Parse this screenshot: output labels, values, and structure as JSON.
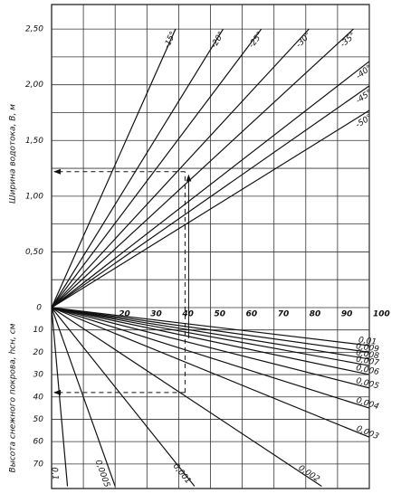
{
  "chart_data": {
    "type": "nomogram",
    "xticks": [
      20,
      30,
      40,
      50,
      60,
      70,
      80,
      90,
      100
    ],
    "xgrid": [
      10,
      20,
      30,
      40,
      50,
      60,
      70,
      80,
      90,
      100
    ],
    "xlim": [
      0,
      100
    ],
    "origin_label": "0",
    "top": {
      "ylabel": "Ширина водотока, B, м",
      "ylim": [
        0,
        2.72
      ],
      "yticks": [
        {
          "value": 0.5,
          "label": "0,50"
        },
        {
          "value": 1.0,
          "label": "1,00"
        },
        {
          "value": 1.5,
          "label": "1,50"
        },
        {
          "value": 2.0,
          "label": "2,00"
        },
        {
          "value": 2.5,
          "label": "2,50"
        }
      ],
      "ygrid": [
        0.25,
        0.5,
        0.75,
        1.0,
        1.25,
        1.5,
        1.75,
        2.0,
        2.25,
        2.5
      ],
      "series": [
        {
          "name": "-15°",
          "x": [
            0,
            39
          ],
          "values": [
            0,
            2.5
          ]
        },
        {
          "name": "-20°",
          "x": [
            0,
            54
          ],
          "values": [
            0,
            2.5
          ]
        },
        {
          "name": "-25°",
          "x": [
            0,
            66
          ],
          "values": [
            0,
            2.5
          ]
        },
        {
          "name": "-30°",
          "x": [
            0,
            81
          ],
          "values": [
            0,
            2.5
          ]
        },
        {
          "name": "-35°",
          "x": [
            0,
            95
          ],
          "values": [
            0,
            2.5
          ]
        },
        {
          "name": "-40°",
          "x": [
            0,
            100
          ],
          "values": [
            0,
            2.21
          ]
        },
        {
          "name": "-45°",
          "x": [
            0,
            100
          ],
          "values": [
            0,
            1.99
          ]
        },
        {
          "name": "-50°",
          "x": [
            0,
            100
          ],
          "values": [
            0,
            1.77
          ]
        }
      ]
    },
    "bottom": {
      "ylabel": "Высота снежного покрова, hсн, см",
      "ylim": [
        0,
        81
      ],
      "yticks": [
        10,
        20,
        30,
        40,
        50,
        60,
        70
      ],
      "series": [
        {
          "name": "0,01",
          "x": [
            0,
            100
          ],
          "values": [
            0,
            17
          ]
        },
        {
          "name": "0,009",
          "x": [
            0,
            100
          ],
          "values": [
            0,
            20
          ]
        },
        {
          "name": "0,008",
          "x": [
            0,
            100
          ],
          "values": [
            0,
            23
          ]
        },
        {
          "name": "0,007",
          "x": [
            0,
            100
          ],
          "values": [
            0,
            26
          ]
        },
        {
          "name": "0,006",
          "x": [
            0,
            100
          ],
          "values": [
            0,
            30
          ]
        },
        {
          "name": "0,005",
          "x": [
            0,
            100
          ],
          "values": [
            0,
            36
          ]
        },
        {
          "name": "0,004",
          "x": [
            0,
            100
          ],
          "values": [
            0,
            45
          ]
        },
        {
          "name": "0,003",
          "x": [
            0,
            100
          ],
          "values": [
            0,
            58
          ]
        },
        {
          "name": "0,002",
          "x": [
            0,
            85
          ],
          "values": [
            0,
            80
          ]
        },
        {
          "name": "0,001",
          "x": [
            0,
            45
          ],
          "values": [
            0,
            80
          ]
        },
        {
          "name": "0,0005",
          "x": [
            0,
            20
          ],
          "values": [
            0,
            80
          ]
        },
        {
          "name": "0,1",
          "x": [
            0,
            5
          ],
          "values": [
            0,
            80
          ]
        }
      ]
    },
    "example": {
      "x": 42,
      "B": 1.22,
      "h": 38
    }
  }
}
